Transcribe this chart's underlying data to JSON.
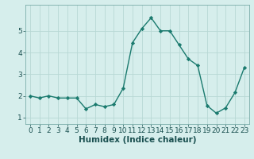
{
  "x": [
    0,
    1,
    2,
    3,
    4,
    5,
    6,
    7,
    8,
    9,
    10,
    11,
    12,
    13,
    14,
    15,
    16,
    17,
    18,
    19,
    20,
    21,
    22,
    23
  ],
  "y": [
    2.0,
    1.9,
    2.0,
    1.9,
    1.9,
    1.9,
    1.4,
    1.6,
    1.5,
    1.6,
    2.35,
    4.45,
    5.1,
    5.6,
    5.0,
    5.0,
    4.35,
    3.7,
    3.4,
    1.55,
    1.2,
    1.45,
    2.15,
    3.3
  ],
  "line_color": "#1a7a6e",
  "marker": "D",
  "marker_size": 2.2,
  "bg_color": "#d6eeec",
  "grid_color": "#b8d8d5",
  "xlabel": "Humidex (Indice chaleur)",
  "xlabel_fontsize": 7.5,
  "tick_fontsize": 6.5,
  "xlim": [
    -0.5,
    23.5
  ],
  "ylim": [
    0.7,
    6.2
  ],
  "yticks": [
    1,
    2,
    3,
    4,
    5
  ],
  "xticks": [
    0,
    1,
    2,
    3,
    4,
    5,
    6,
    7,
    8,
    9,
    10,
    11,
    12,
    13,
    14,
    15,
    16,
    17,
    18,
    19,
    20,
    21,
    22,
    23
  ],
  "line_width": 1.0
}
